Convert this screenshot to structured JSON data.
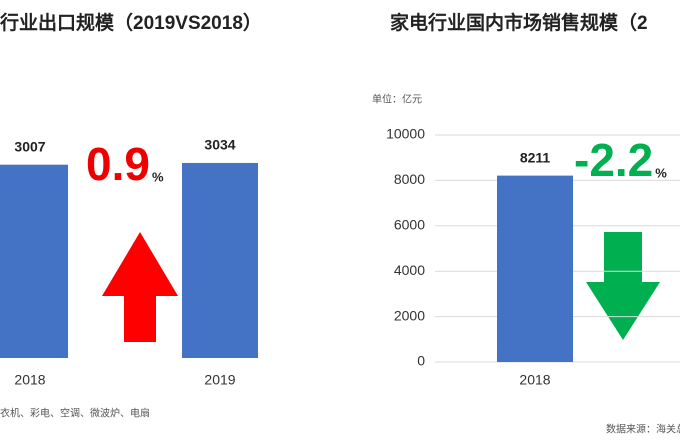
{
  "chart_data": [
    {
      "type": "bar",
      "title": "行业出口规模（2019VS2018）",
      "categories": [
        "2018",
        "2019"
      ],
      "values": [
        3007,
        3034
      ],
      "color": "#4472c4",
      "ylim": [
        0,
        3500
      ],
      "grid": false,
      "change": 0.9,
      "change_unit": "%",
      "change_color": "#ee0000",
      "note": "衣机、彩电、空调、微波炉、电扇"
    },
    {
      "type": "bar",
      "title": "家电行业国内市场销售规模（2",
      "unit_label": "单位：亿元",
      "categories": [
        "2018"
      ],
      "values": [
        8211
      ],
      "color": "#4472c4",
      "ylim": [
        0,
        10000
      ],
      "yticks": [
        0,
        2000,
        4000,
        6000,
        8000,
        10000
      ],
      "grid": true,
      "change": -2.2,
      "change_unit": "%",
      "change_color": "#00b050",
      "source": "数据来源：海关总"
    }
  ]
}
